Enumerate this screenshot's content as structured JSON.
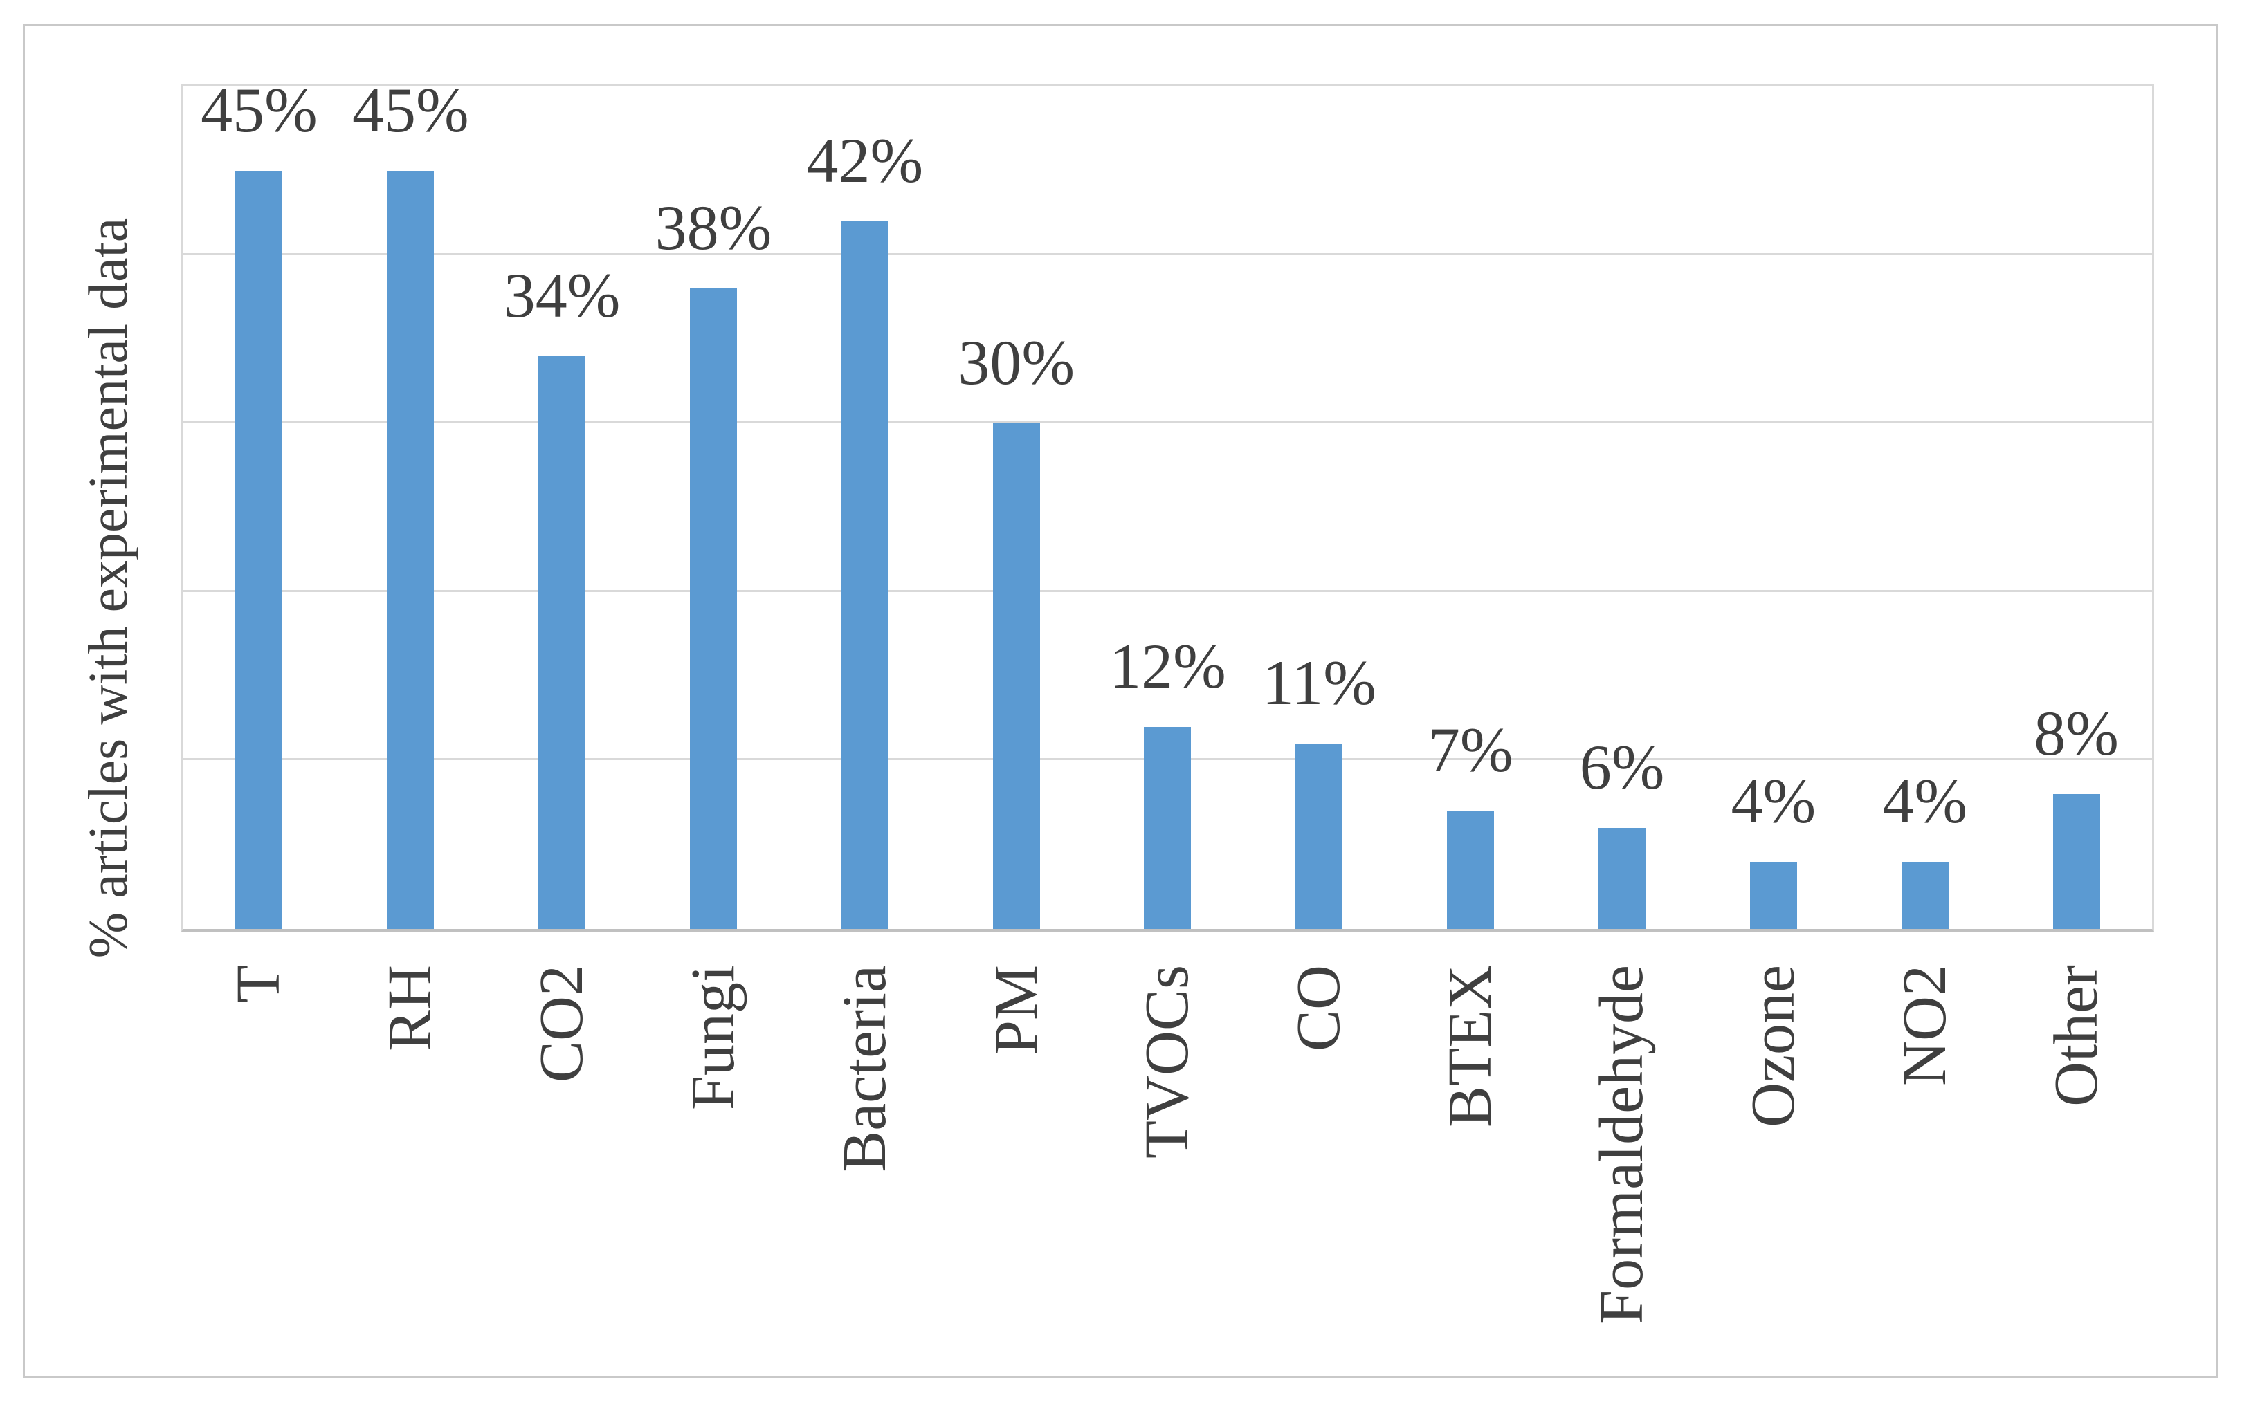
{
  "figure": {
    "background_color": "#FFFFFF",
    "border_color": "#C9C9C9"
  },
  "chart_data": {
    "type": "bar",
    "title": "",
    "xlabel": "",
    "ylabel": "% articles with experimental data",
    "categories": [
      "T",
      "RH",
      "CO2",
      "Fungi",
      "Bacteria",
      "PM",
      "TVOCs",
      "CO",
      "BTEX",
      "Formaldehyde",
      "Ozone",
      "NO2",
      "Other"
    ],
    "values": [
      45,
      45,
      34,
      38,
      42,
      30,
      12,
      11,
      7,
      6,
      4,
      4,
      8
    ],
    "data_labels": [
      "45%",
      "45%",
      "34%",
      "38%",
      "42%",
      "30%",
      "12%",
      "11%",
      "7%",
      "6%",
      "4%",
      "4%",
      "8%"
    ],
    "ylim": [
      0,
      50
    ],
    "gridline_step": 10,
    "grid": "horizontal",
    "y_tick_labels_shown": false,
    "legend": "none",
    "bar_color": "#5B9AD2",
    "gridline_color": "#D9D9D9",
    "axis_line_color": "#C0C0C0",
    "text_color": "#3F3F3F"
  }
}
